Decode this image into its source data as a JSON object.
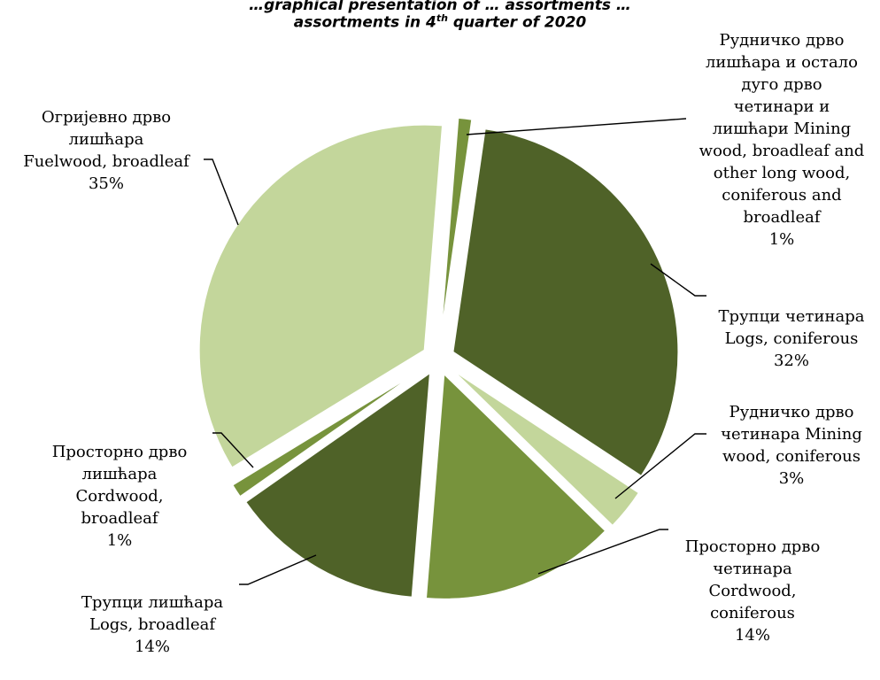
{
  "chart_data": {
    "type": "pie",
    "title_line1": "…graphical presentation of … assortments …",
    "title_line2_a": "assortments in 4",
    "title_line2_sup": "th",
    "title_line2_b": " quarter of 2020",
    "exploded": true,
    "slices": [
      {
        "label": "Рудничко дрво лишћара и остало дуго дрво четинари и лишћари Mining wood, broadleaf and other long wood, coniferous and broadleaf",
        "value": 1,
        "pct_label": "1%",
        "color": "#77933c"
      },
      {
        "label": "Трупци четинара Logs, coniferous",
        "value": 32,
        "pct_label": "32%",
        "color": "#4f6228"
      },
      {
        "label": "Рудничко дрво четинара Mining wood, coniferous",
        "value": 3,
        "pct_label": "3%",
        "color": "#c3d69b"
      },
      {
        "label": "Просторно дрво четинара Cordwood, coniferous",
        "value": 14,
        "pct_label": "14%",
        "color": "#77933c"
      },
      {
        "label": "Трупци лишћара Logs, broadleaf",
        "value": 14,
        "pct_label": "14%",
        "color": "#4f6228"
      },
      {
        "label": "Просторно дрво лишћара Cordwood, broadleaf",
        "value": 1,
        "pct_label": "1%",
        "color": "#77933c"
      },
      {
        "label": "Огријевно дрво лишћара Fuelwood, broadleaf",
        "value": 35,
        "pct_label": "35%",
        "color": "#c3d69b"
      }
    ]
  },
  "labels": {
    "mining_broadleaf": "Рудничко дрво\nлишћара и остало\nдуго дрво\nчетинари и\nлишћари Mining\nwood, broadleaf and\nother long wood,\nconiferous and\nbroadleaf",
    "logs_coniferous": "Трупци четинара\nLogs, coniferous",
    "mining_coniferous": "Рудничко дрво\nчетинара Mining\nwood, coniferous",
    "cordwood_coniferous": "Просторно дрво\nчетинара\nCordwood,\nconiferous",
    "logs_broadleaf": "Трупци лишћара\nLogs, broadleaf",
    "cordwood_broadleaf": "Просторно дрво\nлишћара\nCordwood,\nbroadleaf",
    "fuelwood_broadleaf": "Огријевно дрво\nлишћара\nFuelwood, broadleaf"
  }
}
